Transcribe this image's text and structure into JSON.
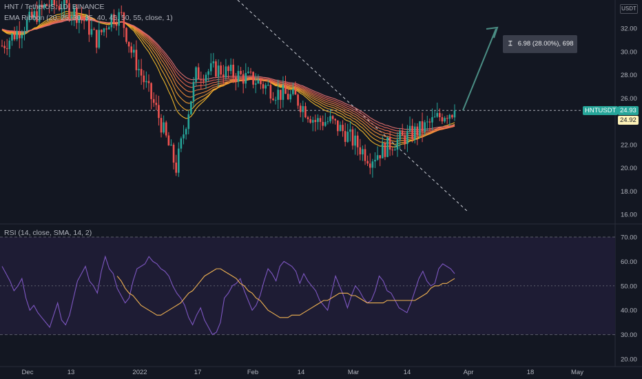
{
  "header": {
    "symbol_line": "HNT / TetherUS, 1D, BINANCE",
    "indicator_line": "EMA Ribbon (20, 25, 30, 35, 40, 45, 50, 55, close, 1)",
    "rsi_title": "RSI (14, close, SMA, 14, 2)",
    "currency_button": "USDT"
  },
  "price_scale": [
    "32.00",
    "30.00",
    "28.00",
    "26.00",
    "24.00",
    "22.00",
    "20.00",
    "18.00",
    "16.00"
  ],
  "rsi_scale": [
    "70.00",
    "60.00",
    "50.00",
    "40.00",
    "30.00",
    "20.00"
  ],
  "time_axis": [
    "Dec",
    "13",
    "2022",
    "17",
    "Feb",
    "14",
    "Mar",
    "14",
    "Apr",
    "18",
    "May"
  ],
  "price_tags": {
    "symbol": "HNTUSDT",
    "last_price": "24.93",
    "ema_price": "24.92"
  },
  "measure_tool": {
    "icon": "range-measure-icon",
    "label": "6.98 (28.00%), 698"
  },
  "colors": {
    "background": "#131722",
    "bull": "#26a69a",
    "bear": "#ef5350",
    "ribbon_top": "#e57373",
    "ribbon_bottom": "#fbc02d",
    "rsi_line": "#7e57c2",
    "rsi_ma": "#f0b252",
    "rsi_band": "#1e1c34",
    "arrow": "#4b8e85"
  },
  "chart_data": [
    {
      "type": "candlestick",
      "title": "HNT / TetherUS, 1D, BINANCE",
      "ylim": [
        15.7,
        33.5
      ],
      "y_ticks": [
        32,
        30,
        28,
        26,
        24,
        22,
        20,
        18,
        16
      ],
      "x_ticks": [
        "Dec",
        "13",
        "2022",
        "17",
        "Feb",
        "14",
        "Mar",
        "14",
        "Apr",
        "18",
        "May"
      ],
      "last_close": 24.93,
      "ribbon_last": 24.92,
      "series": [
        {
          "name": "EMA Ribbon (20, 25, 30, 35, 40, 45, 50, 55, close, 1)",
          "lengths": [
            20,
            25,
            30,
            35,
            40,
            45,
            50,
            55
          ]
        }
      ],
      "measure": {
        "from": 24.93,
        "change": 6.98,
        "percent": 28.0,
        "bars": 698
      }
    },
    {
      "type": "line",
      "title": "RSI (14, close, SMA, 14, 2)",
      "ylim": [
        19,
        72
      ],
      "y_ticks": [
        70,
        60,
        50,
        40,
        30,
        20
      ],
      "band": [
        30,
        70
      ],
      "series": [
        {
          "name": "RSI",
          "values": [
            58,
            55,
            52,
            48,
            50,
            53,
            45,
            40,
            42,
            39,
            37,
            35,
            33,
            38,
            43,
            36,
            34,
            38,
            45,
            52,
            55,
            58,
            52,
            50,
            47,
            56,
            62,
            57,
            55,
            49,
            46,
            43,
            45,
            52,
            57,
            58,
            59,
            62,
            60,
            59,
            57,
            56,
            54,
            50,
            47,
            45,
            42,
            37,
            34,
            38,
            41,
            36,
            33,
            30,
            31,
            35,
            45,
            47,
            50,
            51,
            53,
            48,
            44,
            40,
            42,
            46,
            52,
            57,
            55,
            52,
            58,
            60,
            59,
            58,
            56,
            51,
            55,
            52,
            50,
            48,
            44,
            42,
            40,
            47,
            54,
            50,
            46,
            41,
            46,
            50,
            48,
            45,
            43,
            44,
            48,
            54,
            52,
            48,
            47,
            44,
            41,
            40,
            39,
            43,
            48,
            53,
            56,
            52,
            50,
            51,
            57,
            59,
            58,
            57,
            55
          ]
        },
        {
          "name": "RSI-based MA",
          "values": [
            54,
            52,
            49,
            47,
            46,
            44,
            42,
            41,
            40,
            39,
            38,
            38,
            39,
            40,
            41,
            42,
            43,
            45,
            47,
            48,
            50,
            52,
            54,
            55,
            56,
            57,
            57,
            56,
            55,
            54,
            53,
            51,
            50,
            48,
            47,
            45,
            44,
            42,
            40,
            39,
            38,
            37,
            37,
            37,
            38,
            38,
            38,
            39,
            40,
            41,
            42,
            43,
            44,
            44,
            45,
            46,
            47,
            47,
            47,
            46,
            46,
            45,
            44,
            43,
            43,
            43,
            43,
            43,
            44,
            44,
            44,
            44,
            44,
            44,
            44,
            44,
            45,
            46,
            47,
            49,
            50,
            50,
            51,
            51,
            52,
            53
          ]
        }
      ]
    }
  ]
}
